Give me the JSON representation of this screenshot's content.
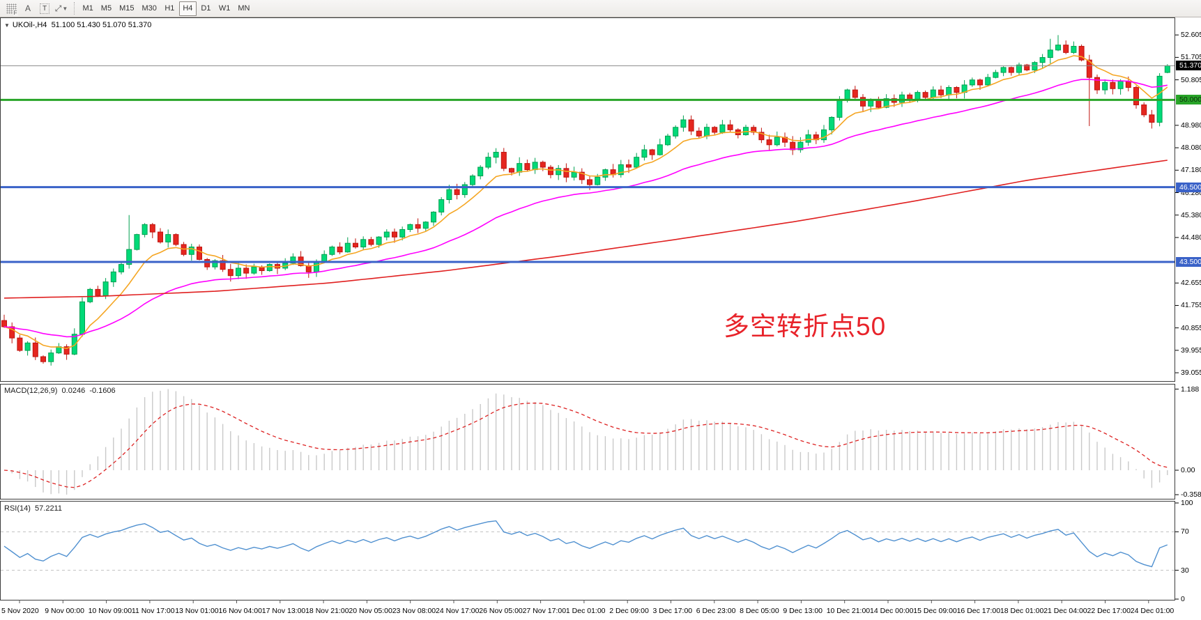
{
  "toolbar": {
    "fgrid_label": "F",
    "text_tool_label": "A",
    "textbox_tool_label": "T",
    "cursor_tool_glyph": "⤢",
    "timeframes": [
      "M1",
      "M5",
      "M15",
      "M30",
      "H1",
      "H4",
      "D1",
      "W1",
      "MN"
    ],
    "active_timeframe": "H4"
  },
  "chart_header": {
    "symbol": "UKOil-,H4",
    "open": "51.100",
    "high": "51.430",
    "low": "51.070",
    "close": "51.370"
  },
  "annotation": {
    "text": "多空转折点50",
    "color": "#e8232a"
  },
  "chart_data": {
    "type": "candlestick",
    "symbol": "UKOil-",
    "timeframe": "H4",
    "title": "UKOil-,H4 51.100 51.430 51.070 51.370",
    "last_candle": {
      "open": 51.1,
      "high": 51.43,
      "low": 51.07,
      "close": 51.37
    },
    "closes": [
      40.9,
      40.45,
      39.95,
      40.25,
      39.7,
      39.5,
      39.85,
      40.1,
      39.8,
      40.6,
      41.9,
      42.4,
      42.15,
      42.7,
      43.1,
      43.4,
      44.0,
      44.6,
      45.0,
      44.7,
      44.3,
      44.6,
      44.2,
      43.8,
      44.1,
      43.6,
      43.3,
      43.55,
      43.2,
      42.95,
      43.25,
      43.05,
      43.3,
      43.15,
      43.4,
      43.25,
      43.45,
      43.7,
      43.35,
      43.1,
      43.5,
      43.8,
      44.1,
      43.9,
      44.25,
      44.1,
      44.4,
      44.2,
      44.5,
      44.7,
      44.5,
      44.8,
      45.0,
      44.85,
      45.1,
      45.5,
      46.0,
      46.4,
      46.2,
      46.6,
      46.95,
      47.3,
      47.7,
      47.9,
      47.25,
      47.1,
      47.45,
      47.2,
      47.5,
      47.3,
      47.0,
      47.25,
      46.9,
      47.1,
      46.8,
      46.6,
      46.9,
      47.2,
      47.0,
      47.4,
      47.3,
      47.7,
      48.0,
      47.8,
      48.2,
      48.55,
      48.9,
      49.2,
      48.75,
      48.55,
      48.9,
      48.7,
      49.0,
      48.8,
      48.6,
      48.9,
      48.7,
      48.4,
      48.2,
      48.5,
      48.3,
      48.0,
      48.3,
      48.6,
      48.4,
      48.8,
      49.3,
      50.0,
      50.4,
      50.1,
      49.75,
      50.0,
      49.7,
      50.05,
      49.9,
      50.2,
      50.0,
      50.3,
      50.1,
      50.4,
      50.2,
      50.5,
      50.3,
      50.6,
      50.8,
      50.6,
      50.9,
      51.1,
      51.3,
      51.1,
      51.4,
      51.2,
      51.5,
      51.7,
      52.0,
      52.2,
      51.9,
      52.15,
      51.6,
      50.9,
      50.4,
      50.7,
      50.45,
      50.75,
      50.5,
      49.8,
      49.4,
      49.1,
      50.95,
      51.37
    ],
    "wick_overrides": {
      "16": {
        "h": 45.38
      },
      "134": {
        "h": 52.45
      },
      "135": {
        "h": 52.6
      },
      "139": {
        "l": 48.95
      },
      "147": {
        "l": 48.85
      },
      "149": {
        "o": 51.1,
        "h": 51.43,
        "l": 51.07
      }
    },
    "y_axis": {
      "range": {
        "min": 38.75,
        "max": 53.28
      },
      "ticks": [
        "52.605",
        "51.705",
        "50.805",
        "48.980",
        "48.080",
        "47.180",
        "46.280",
        "45.380",
        "44.480",
        "42.655",
        "41.755",
        "40.855",
        "39.955",
        "39.055"
      ]
    },
    "levels": [
      {
        "price": 51.37,
        "label": "51.370",
        "line": "#8a8a8a",
        "width": 1,
        "badge_bg": "#000000",
        "badge_fg": "#ffffff"
      },
      {
        "price": 50.0,
        "label": "50.000",
        "line": "#28a428",
        "width": 3,
        "badge_bg": "#28a428",
        "badge_fg": "#0b2e0b"
      },
      {
        "price": 46.5,
        "label": "46.500",
        "line": "#3a62c8",
        "width": 3,
        "badge_bg": "#3a62c8",
        "badge_fg": "#ffffff"
      },
      {
        "price": 43.5,
        "label": "43.500",
        "line": "#3a62c8",
        "width": 3,
        "badge_bg": "#3a62c8",
        "badge_fg": "#ffffff"
      }
    ],
    "moving_averages": [
      {
        "name": "fast",
        "type": "ema",
        "period": 8,
        "color": "#f5a623"
      },
      {
        "name": "mid",
        "type": "ema",
        "period": 30,
        "color": "#ff00ff"
      },
      {
        "name": "slow",
        "type": "anchors",
        "color": "#e02020",
        "points": [
          [
            0,
            42.05
          ],
          [
            0.08,
            42.12
          ],
          [
            0.18,
            42.32
          ],
          [
            0.28,
            42.66
          ],
          [
            0.38,
            43.15
          ],
          [
            0.48,
            43.75
          ],
          [
            0.58,
            44.42
          ],
          [
            0.68,
            45.12
          ],
          [
            0.78,
            45.92
          ],
          [
            0.88,
            46.78
          ],
          [
            1,
            47.58
          ]
        ]
      }
    ],
    "x_labels": [
      "5 Nov 2020",
      "9 Nov 00:00",
      "10 Nov 09:00",
      "11 Nov 17:00",
      "13 Nov 01:00",
      "16 Nov 04:00",
      "17 Nov 13:00",
      "18 Nov 21:00",
      "20 Nov 05:00",
      "23 Nov 08:00",
      "24 Nov 17:00",
      "26 Nov 05:00",
      "27 Nov 17:00",
      "1 Dec 01:00",
      "2 Dec 09:00",
      "3 Dec 17:00",
      "6 Dec 23:00",
      "8 Dec 05:00",
      "9 Dec 13:00",
      "10 Dec 21:00",
      "14 Dec 00:00",
      "15 Dec 09:00",
      "16 Dec 17:00",
      "18 Dec 01:00",
      "21 Dec 04:00",
      "22 Dec 17:00",
      "24 Dec 01:00"
    ],
    "macd": {
      "name": "MACD(12,26,9)",
      "value": "0.0246",
      "signal_value": "-0.1606",
      "fast": 12,
      "slow": 26,
      "signal": 9,
      "axis_ticks": [
        {
          "v": 1.188,
          "label": "1.188"
        },
        {
          "v": 0,
          "label": "0.00"
        },
        {
          "v": -0.3582,
          "label": "-0.3582"
        }
      ],
      "max": 1.188,
      "min": -0.3582
    },
    "rsi": {
      "name": "RSI(14)",
      "value": "57.2211",
      "period": 14,
      "axis_ticks": [
        {
          "v": 100,
          "label": "100"
        },
        {
          "v": 70,
          "label": "70"
        },
        {
          "v": 30,
          "label": "30"
        },
        {
          "v": 0,
          "label": "0"
        }
      ],
      "levels": [
        70,
        30
      ]
    },
    "colors": {
      "up_fill": "#00da78",
      "up_stroke": "#00a050",
      "down_fill": "#e5261f",
      "down_stroke": "#bf140f",
      "macd_hist": "#c9c9c9",
      "macd_signal": "#dd2222",
      "rsi_line": "#4f90d0",
      "dashed_level": "#c0c0c0",
      "panel_border": "#3c3c3c"
    }
  }
}
